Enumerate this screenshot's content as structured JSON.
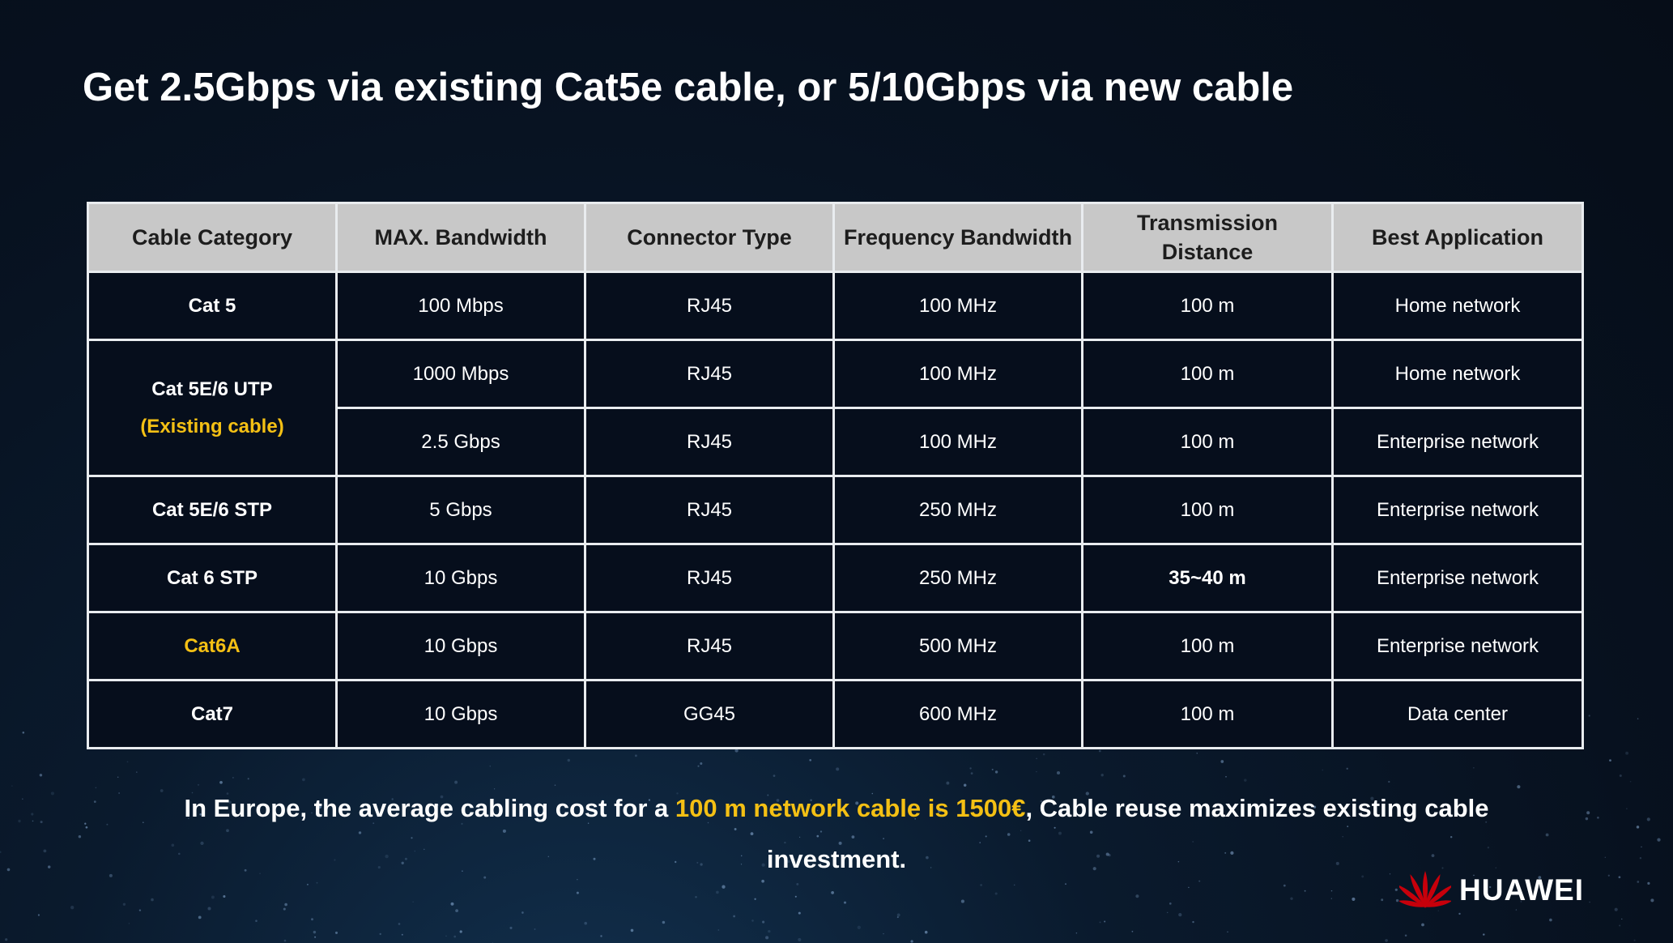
{
  "slide": {
    "title": "Get 2.5Gbps via existing Cat5e cable, or 5/10Gbps via new cable"
  },
  "table": {
    "headers": {
      "category": "Cable Category",
      "bandwidth": "MAX. Bandwidth",
      "connector": "Connector Type",
      "frequency": "Frequency Bandwidth",
      "distance": "Transmission Distance",
      "application": "Best Application"
    },
    "rows": [
      {
        "category": "Cat 5",
        "bandwidth": "100 Mbps",
        "connector": "RJ45",
        "frequency": "100 MHz",
        "distance": "100 m",
        "application": "Home network"
      },
      {
        "category": "Cat 5E/6 UTP",
        "category_note": "(Existing cable)",
        "bandwidth": "1000 Mbps",
        "connector": "RJ45",
        "frequency": "100 MHz",
        "distance": "100 m",
        "application": "Home network"
      },
      {
        "bandwidth": "2.5 Gbps",
        "connector": "RJ45",
        "frequency": "100 MHz",
        "distance": "100 m",
        "application": "Enterprise network"
      },
      {
        "category": "Cat 5E/6 STP",
        "bandwidth": "5 Gbps",
        "connector": "RJ45",
        "frequency": "250 MHz",
        "distance": "100 m",
        "application": "Enterprise network"
      },
      {
        "category": "Cat 6 STP",
        "bandwidth": "10 Gbps",
        "connector": "RJ45",
        "frequency": "250 MHz",
        "distance": "35~40 m",
        "application": "Enterprise network"
      },
      {
        "category": "Cat6A",
        "bandwidth": "10 Gbps",
        "connector": "RJ45",
        "frequency": "500 MHz",
        "distance": "100 m",
        "application": "Enterprise network"
      },
      {
        "category": "Cat7",
        "bandwidth": "10 Gbps",
        "connector": "GG45",
        "frequency": "600 MHz",
        "distance": "100 m",
        "application": "Data center"
      }
    ]
  },
  "footnote": {
    "part1": "In Europe, the average cabling cost for a ",
    "highlight": "100 m network cable is 1500€",
    "part2": ", Cable reuse maximizes existing cable investment."
  },
  "logo": {
    "text": "HUAWEI",
    "icon": "huawei-flower-logo-icon",
    "color": "#c7000b"
  },
  "colors": {
    "accent": "#f4c014",
    "header_bg": "#c8c8c8",
    "background": "#07111f"
  }
}
